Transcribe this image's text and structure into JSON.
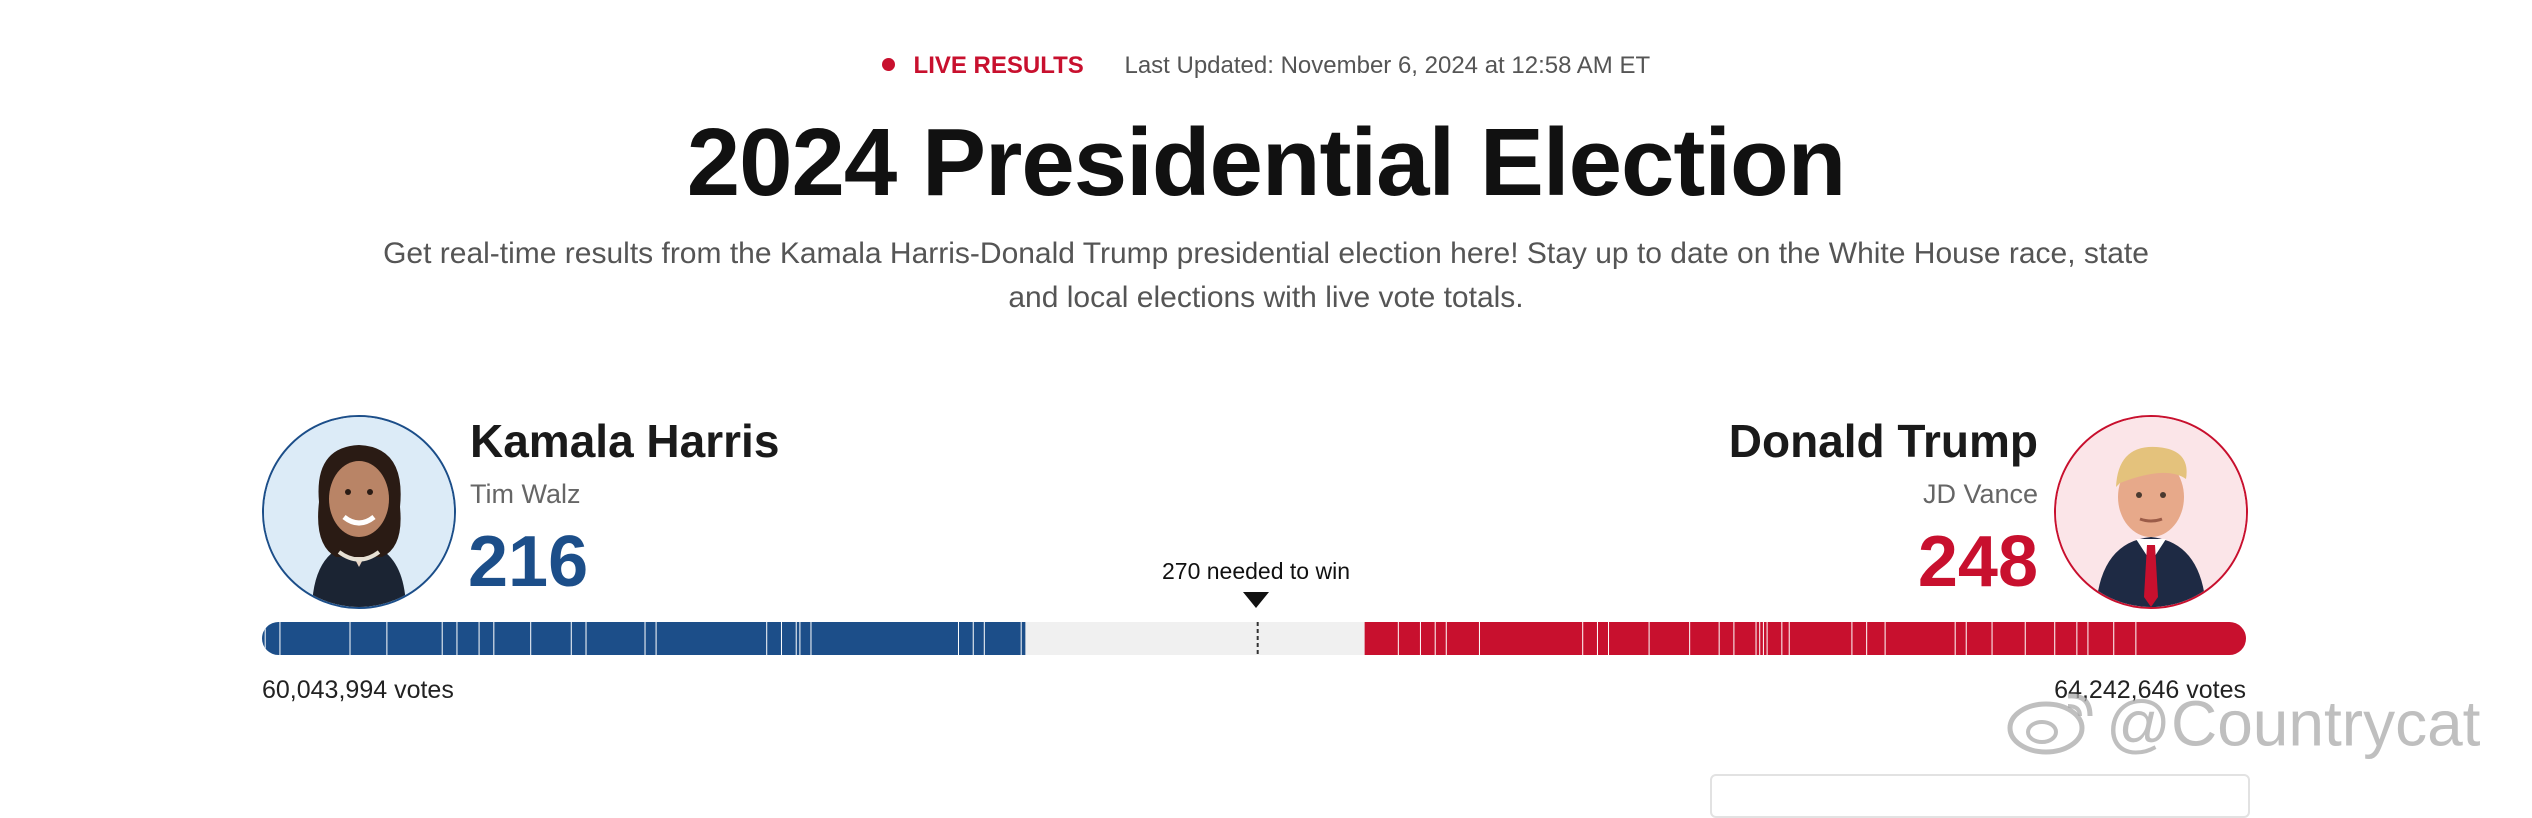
{
  "header": {
    "live_label": "LIVE RESULTS",
    "last_updated": "Last Updated: November 6, 2024 at 12:58 AM ET",
    "title": "2024 Presidential Election",
    "subtitle": "Get real-time results from the Kamala Harris-Donald Trump presidential election here! Stay up to date on the White House race, state and local elections with live vote totals."
  },
  "colors": {
    "dem": "#1c4e89",
    "rep": "#c8102e",
    "live": "#c8102e"
  },
  "candidates": {
    "dem": {
      "name": "Kamala Harris",
      "running_mate": "Tim Walz",
      "electoral_votes": "216",
      "popular_votes": "60,043,994 votes"
    },
    "rep": {
      "name": "Donald Trump",
      "running_mate": "JD Vance",
      "electoral_votes": "248",
      "popular_votes": "64,242,646 votes"
    }
  },
  "race": {
    "needed_label": "270 needed to win",
    "total_electoral": 538,
    "needed": 270
  },
  "dem_state_segments": [
    1,
    4,
    19,
    10,
    15,
    4,
    6,
    4,
    10,
    11,
    4,
    16,
    3,
    30,
    4,
    4,
    1,
    3,
    40,
    4,
    3,
    10,
    1
  ],
  "rep_state_segments": [
    30,
    6,
    7,
    3,
    6,
    8,
    9,
    7,
    3,
    19,
    5,
    4,
    17,
    2,
    4,
    1,
    1,
    1,
    6,
    4,
    8,
    11,
    11,
    3,
    4,
    28,
    9,
    3,
    4,
    6,
    9
  ],
  "watermark": "@Countrycat"
}
